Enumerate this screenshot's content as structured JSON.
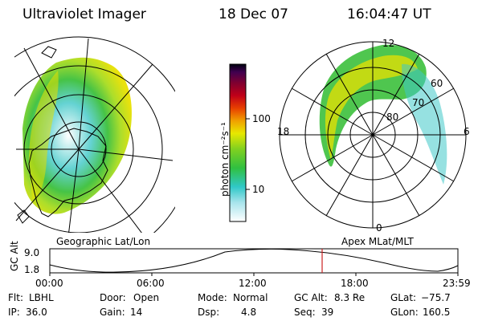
{
  "header": {
    "instrument": "Ultraviolet Imager",
    "date": "18 Dec 07",
    "time": "16:04:47 UT"
  },
  "colorbar": {
    "unit_label": "photon cm⁻²s⁻¹",
    "ticks": [
      "100",
      "10"
    ]
  },
  "maps": {
    "left_label": "Geographic Lat/Lon",
    "right_label": "Apex MLat/MLT",
    "polar_mlt_labels": {
      "top": "12",
      "left": "18",
      "right": "6",
      "bottom": "0"
    },
    "polar_lat_labels": [
      "60",
      "70",
      "80"
    ]
  },
  "timeline": {
    "ylabel": "GC Alt",
    "y_ticks": [
      "9.0",
      "1.8"
    ],
    "x_ticks": [
      "00:00",
      "06:00",
      "12:00",
      "18:00",
      "23:59"
    ]
  },
  "info": {
    "flt_label": "Flt:",
    "flt_value": "LBHL",
    "door_label": "Door:",
    "door_value": "Open",
    "mode_label": "Mode:",
    "mode_value": "Normal",
    "gcalt_label": "GC Alt:",
    "gcalt_value": "8.3 Re",
    "glat_label": "GLat:",
    "glat_value": "−75.7",
    "ip_label": "IP:",
    "ip_value": "36.0",
    "gain_label": "Gain:",
    "gain_value": "14",
    "dsp_label": "Dsp:",
    "dsp_value": "4.8",
    "seq_label": "Seq:",
    "seq_value": "39",
    "glon_label": "GLon:",
    "glon_value": "160.5"
  },
  "colors": {
    "orbit_marker": "#cc2222",
    "aurora_bright": "#e8e000",
    "aurora_mid": "#3cc03c",
    "aurora_low": "#40c8c8"
  }
}
